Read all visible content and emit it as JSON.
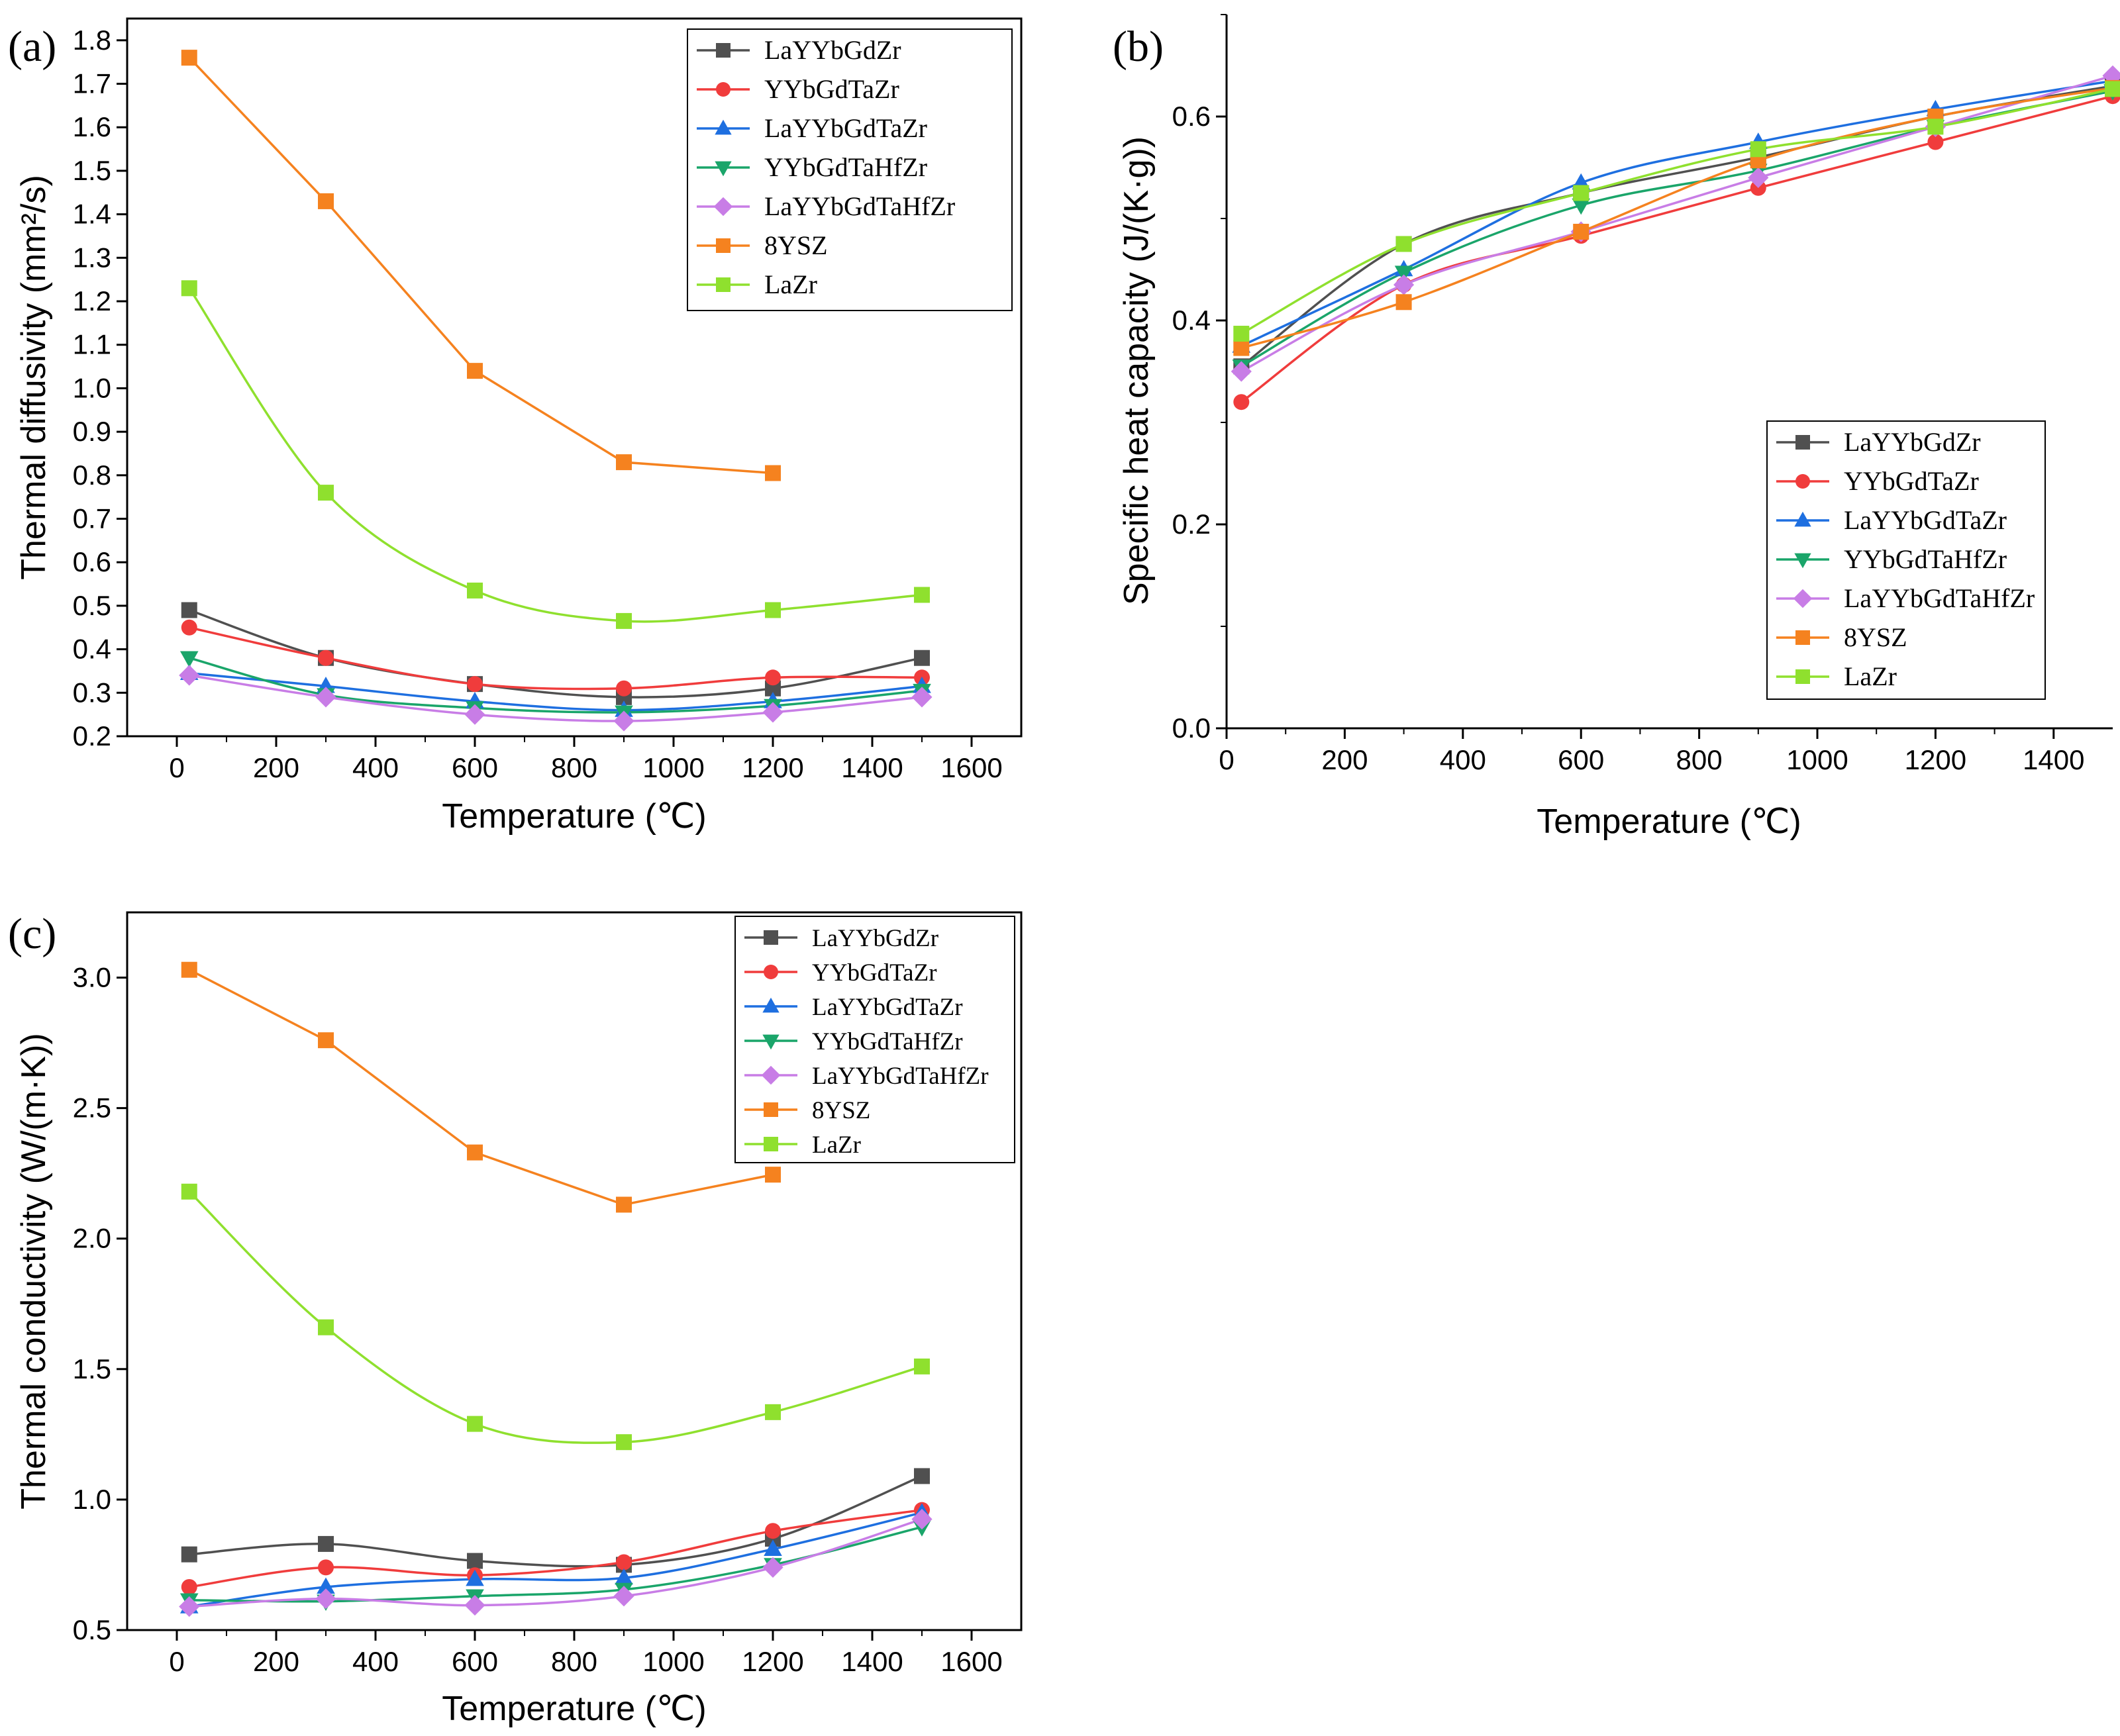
{
  "figure": {
    "legend_entries": [
      "LaYYbGdZr",
      "YYbGdTaZr",
      "LaYYbGdTaZr",
      "YYbGdTaHfZr",
      "LaYYbGdTaHfZr",
      "8YSZ",
      "LaZr"
    ],
    "series_styles": [
      {
        "name": "LaYYbGdZr",
        "color": "#505050",
        "marker": "square"
      },
      {
        "name": "YYbGdTaZr",
        "color": "#f03c3c",
        "marker": "circle"
      },
      {
        "name": "LaYYbGdTaZr",
        "color": "#1e6fe0",
        "marker": "triangle-up"
      },
      {
        "name": "YYbGdTaHfZr",
        "color": "#1aa56a",
        "marker": "triangle-down"
      },
      {
        "name": "LaYYbGdTaHfZr",
        "color": "#c87de6",
        "marker": "diamond"
      },
      {
        "name": "8YSZ",
        "color": "#f5821f",
        "marker": "square"
      },
      {
        "name": "LaZr",
        "color": "#8fe02e",
        "marker": "square"
      }
    ]
  },
  "chart_data": [
    {
      "type": "line",
      "panel_label": "(a)",
      "title": "",
      "xlabel": "Temperature (℃)",
      "ylabel": "Thermal diffusivity (mm²/s)",
      "xlim": [
        -100,
        1700
      ],
      "ylim": [
        0.2,
        1.85
      ],
      "xticks": [
        0,
        200,
        400,
        600,
        800,
        1000,
        1200,
        1400,
        1600
      ],
      "yticks": [
        0.2,
        0.3,
        0.4,
        0.5,
        0.6,
        0.7,
        0.8,
        0.9,
        1.0,
        1.1,
        1.2,
        1.3,
        1.4,
        1.5,
        1.6,
        1.7,
        1.8
      ],
      "ytick_labels": [
        "0.2",
        "0.3",
        "0.4",
        "0.5",
        "0.6",
        "0.7",
        "0.8",
        "0.9",
        "1.0",
        "1.1",
        "1.2",
        "1.3",
        "1.4",
        "1.5",
        "1.6",
        "1.7",
        "1.8"
      ],
      "legend_position": "top-right",
      "series": [
        {
          "name": "LaYYbGdZr",
          "x": [
            25,
            300,
            600,
            900,
            1200,
            1500
          ],
          "values": [
            0.49,
            0.38,
            0.32,
            0.29,
            0.31,
            0.38
          ]
        },
        {
          "name": "YYbGdTaZr",
          "x": [
            25,
            300,
            600,
            900,
            1200,
            1500
          ],
          "values": [
            0.45,
            0.38,
            0.32,
            0.31,
            0.335,
            0.335
          ]
        },
        {
          "name": "LaYYbGdTaZr",
          "x": [
            25,
            300,
            600,
            900,
            1200,
            1500
          ],
          "values": [
            0.345,
            0.315,
            0.28,
            0.26,
            0.28,
            0.315
          ]
        },
        {
          "name": "YYbGdTaHfZr",
          "x": [
            25,
            300,
            600,
            900,
            1200,
            1500
          ],
          "values": [
            0.38,
            0.295,
            0.265,
            0.255,
            0.27,
            0.305
          ]
        },
        {
          "name": "LaYYbGdTaHfZr",
          "x": [
            25,
            300,
            600,
            900,
            1200,
            1500
          ],
          "values": [
            0.34,
            0.29,
            0.25,
            0.235,
            0.255,
            0.29
          ]
        },
        {
          "name": "8YSZ",
          "x": [
            25,
            300,
            600,
            900,
            1200
          ],
          "values": [
            1.76,
            1.43,
            1.04,
            0.83,
            0.805
          ]
        },
        {
          "name": "LaZr",
          "x": [
            25,
            300,
            600,
            900,
            1200,
            1500
          ],
          "values": [
            1.23,
            0.76,
            0.535,
            0.465,
            0.49,
            0.525
          ]
        }
      ]
    },
    {
      "type": "line",
      "panel_label": "(b)",
      "title": "",
      "xlabel": "Temperature (℃)",
      "ylabel": "Specific heat capacity (J/(K·g))",
      "xlim": [
        0,
        1500
      ],
      "ylim": [
        0.0,
        0.7
      ],
      "xticks": [
        0,
        200,
        400,
        600,
        800,
        1000,
        1200,
        1400
      ],
      "yticks": [
        0.0,
        0.2,
        0.4,
        0.6
      ],
      "ytick_labels": [
        "0.0",
        "0.2",
        "0.4",
        "0.6"
      ],
      "legend_position": "lower-right",
      "series": [
        {
          "name": "LaYYbGdZr",
          "x": [
            25,
            300,
            600,
            900,
            1200,
            1500
          ],
          "values": [
            0.355,
            0.475,
            0.525,
            0.56,
            0.6,
            0.63
          ]
        },
        {
          "name": "YYbGdTaZr",
          "x": [
            25,
            300,
            600,
            900,
            1200,
            1500
          ],
          "values": [
            0.32,
            0.435,
            0.483,
            0.53,
            0.575,
            0.62
          ]
        },
        {
          "name": "LaYYbGdTaZr",
          "x": [
            25,
            300,
            600,
            900,
            1200,
            1500
          ],
          "values": [
            0.375,
            0.45,
            0.535,
            0.575,
            0.607,
            0.635
          ]
        },
        {
          "name": "YYbGdTaHfZr",
          "x": [
            25,
            300,
            600,
            900,
            1200,
            1500
          ],
          "values": [
            0.355,
            0.447,
            0.513,
            0.547,
            0.59,
            0.625
          ]
        },
        {
          "name": "LaYYbGdTaHfZr",
          "x": [
            25,
            300,
            600,
            900,
            1200,
            1500
          ],
          "values": [
            0.35,
            0.435,
            0.487,
            0.54,
            0.59,
            0.64
          ]
        },
        {
          "name": "8YSZ",
          "x": [
            25,
            300,
            600,
            900,
            1200,
            1500
          ],
          "values": [
            0.373,
            0.418,
            0.487,
            0.557,
            0.6,
            0.628
          ]
        },
        {
          "name": "LaZr",
          "x": [
            25,
            300,
            600,
            900,
            1200,
            1500
          ],
          "values": [
            0.387,
            0.475,
            0.525,
            0.568,
            0.59,
            0.627
          ]
        }
      ]
    },
    {
      "type": "line",
      "panel_label": "(c)",
      "title": "",
      "xlabel": "Temperature (℃)",
      "ylabel": "Thermal conductivity (W/(m·K))",
      "xlim": [
        -100,
        1700
      ],
      "ylim": [
        0.5,
        3.25
      ],
      "xticks": [
        0,
        200,
        400,
        600,
        800,
        1000,
        1200,
        1400,
        1600
      ],
      "yticks": [
        0.5,
        1.0,
        1.5,
        2.0,
        2.5,
        3.0
      ],
      "ytick_labels": [
        "0.5",
        "1.0",
        "1.5",
        "2.0",
        "2.5",
        "3.0"
      ],
      "legend_position": "top-right",
      "series": [
        {
          "name": "LaYYbGdZr",
          "x": [
            25,
            300,
            600,
            900,
            1200,
            1500
          ],
          "values": [
            0.79,
            0.83,
            0.765,
            0.75,
            0.85,
            1.09
          ]
        },
        {
          "name": "YYbGdTaZr",
          "x": [
            25,
            300,
            600,
            900,
            1200,
            1500
          ],
          "values": [
            0.665,
            0.74,
            0.71,
            0.76,
            0.88,
            0.96
          ]
        },
        {
          "name": "LaYYbGdTaZr",
          "x": [
            25,
            300,
            600,
            900,
            1200,
            1500
          ],
          "values": [
            0.59,
            0.665,
            0.695,
            0.7,
            0.81,
            0.95
          ]
        },
        {
          "name": "YYbGdTaHfZr",
          "x": [
            25,
            300,
            600,
            900,
            1200,
            1500
          ],
          "values": [
            0.615,
            0.61,
            0.63,
            0.655,
            0.75,
            0.895
          ]
        },
        {
          "name": "LaYYbGdTaHfZr",
          "x": [
            25,
            300,
            600,
            900,
            1200,
            1500
          ],
          "values": [
            0.59,
            0.62,
            0.595,
            0.63,
            0.74,
            0.925
          ]
        },
        {
          "name": "8YSZ",
          "x": [
            25,
            300,
            600,
            900,
            1200
          ],
          "values": [
            3.03,
            2.76,
            2.33,
            2.13,
            2.245
          ]
        },
        {
          "name": "LaZr",
          "x": [
            25,
            300,
            600,
            900,
            1200,
            1500
          ],
          "values": [
            2.18,
            1.66,
            1.29,
            1.22,
            1.335,
            1.51
          ]
        }
      ]
    }
  ]
}
